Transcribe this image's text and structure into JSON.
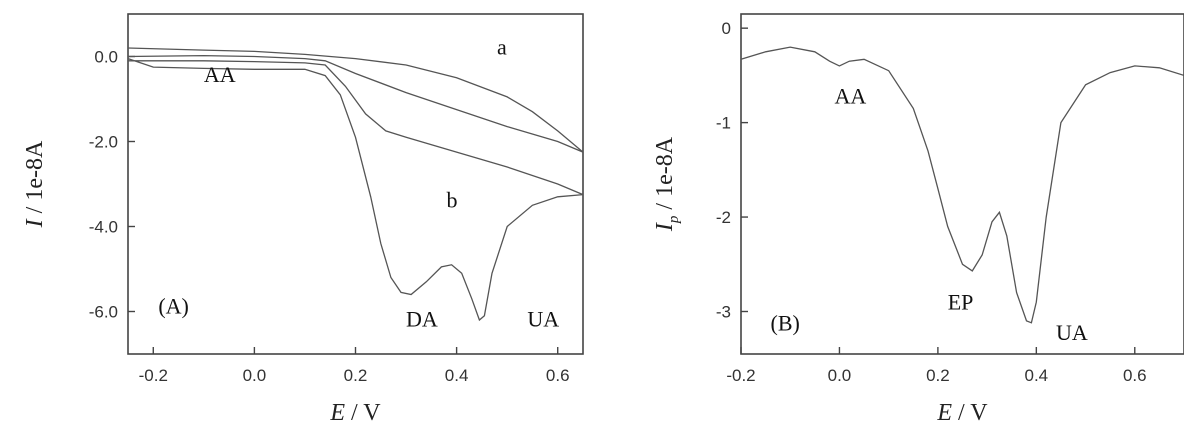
{
  "chart_data": [
    {
      "type": "line",
      "panel": "(A)",
      "xlabel": {
        "italic": "E",
        "rest": " / V"
      },
      "ylabel": {
        "italic": "I",
        "rest": " / 1e-8A"
      },
      "xlim": [
        -0.25,
        0.65
      ],
      "ylim": [
        -7.0,
        1.0
      ],
      "xticks": [
        -0.2,
        0.0,
        0.2,
        0.4,
        0.6
      ],
      "xtick_labels": [
        "-0.2",
        "0.0",
        "0.2",
        "0.4",
        "0.6"
      ],
      "yticks": [
        0.0,
        -2.0,
        -4.0,
        -6.0
      ],
      "ytick_labels": [
        "0.0",
        "-2.0",
        "-4.0",
        "-6.0"
      ],
      "series": [
        {
          "id": "a-upper",
          "x": [
            -0.25,
            -0.1,
            0.0,
            0.1,
            0.2,
            0.3,
            0.4,
            0.5,
            0.55,
            0.6,
            0.65
          ],
          "y": [
            0.2,
            0.15,
            0.12,
            0.05,
            -0.05,
            -0.2,
            -0.5,
            -0.95,
            -1.3,
            -1.75,
            -2.25
          ]
        },
        {
          "id": "a-lower",
          "x": [
            -0.25,
            -0.1,
            0.0,
            0.1,
            0.14,
            0.2,
            0.3,
            0.4,
            0.5,
            0.6,
            0.65
          ],
          "y": [
            0.0,
            0.02,
            0.0,
            -0.05,
            -0.1,
            -0.4,
            -0.85,
            -1.25,
            -1.65,
            -2.0,
            -2.25
          ]
        },
        {
          "id": "b-upper",
          "x": [
            -0.25,
            -0.1,
            0.0,
            0.1,
            0.14,
            0.18,
            0.22,
            0.26,
            0.3,
            0.4,
            0.5,
            0.6,
            0.65
          ],
          "y": [
            -0.1,
            -0.1,
            -0.12,
            -0.15,
            -0.2,
            -0.7,
            -1.35,
            -1.75,
            -1.9,
            -2.25,
            -2.6,
            -3.0,
            -3.25
          ]
        },
        {
          "id": "b-lower",
          "x": [
            -0.25,
            -0.2,
            -0.1,
            0.0,
            0.1,
            0.14,
            0.17,
            0.2,
            0.23,
            0.25,
            0.27,
            0.29,
            0.31,
            0.34,
            0.37,
            0.39,
            0.41,
            0.43,
            0.445,
            0.455,
            0.47,
            0.5,
            0.55,
            0.6,
            0.65
          ],
          "y": [
            -0.05,
            -0.25,
            -0.28,
            -0.3,
            -0.3,
            -0.45,
            -0.9,
            -1.9,
            -3.3,
            -4.4,
            -5.2,
            -5.55,
            -5.6,
            -5.3,
            -4.95,
            -4.9,
            -5.1,
            -5.7,
            -6.2,
            -6.1,
            -5.1,
            -4.0,
            -3.5,
            -3.3,
            -3.25
          ]
        }
      ],
      "annotations": [
        {
          "text": "a",
          "x": 0.48,
          "y": 0.05
        },
        {
          "text": "AA",
          "x": -0.1,
          "y": -0.6
        },
        {
          "text": "b",
          "x": 0.38,
          "y": -3.55
        },
        {
          "text": "(A)",
          "x": -0.19,
          "y": -6.05
        },
        {
          "text": "DA",
          "x": 0.3,
          "y": -6.35
        },
        {
          "text": "UA",
          "x": 0.54,
          "y": -6.35
        }
      ]
    },
    {
      "type": "line",
      "panel": "(B)",
      "xlabel": {
        "italic": "E",
        "rest": " / V"
      },
      "ylabel": {
        "italic": "I",
        "sub": "p",
        "rest": " / 1e-8A"
      },
      "xlim": [
        -0.2,
        0.7
      ],
      "ylim": [
        -3.45,
        0.15
      ],
      "xticks": [
        -0.2,
        0.0,
        0.2,
        0.4,
        0.6
      ],
      "xtick_labels": [
        "-0.2",
        "0.0",
        "0.2",
        "0.4",
        "0.6"
      ],
      "yticks": [
        0,
        -1,
        -2,
        -3
      ],
      "ytick_labels": [
        "0",
        "-1",
        "-2",
        "-3"
      ],
      "series": [
        {
          "id": "dpv",
          "x": [
            -0.2,
            -0.15,
            -0.1,
            -0.05,
            -0.02,
            0.0,
            0.02,
            0.05,
            0.1,
            0.15,
            0.18,
            0.2,
            0.22,
            0.25,
            0.27,
            0.29,
            0.31,
            0.325,
            0.34,
            0.36,
            0.38,
            0.39,
            0.4,
            0.42,
            0.45,
            0.5,
            0.55,
            0.6,
            0.65,
            0.7
          ],
          "y": [
            -0.33,
            -0.25,
            -0.2,
            -0.25,
            -0.35,
            -0.4,
            -0.35,
            -0.33,
            -0.45,
            -0.85,
            -1.3,
            -1.7,
            -2.1,
            -2.5,
            -2.57,
            -2.4,
            -2.05,
            -1.95,
            -2.2,
            -2.8,
            -3.1,
            -3.12,
            -2.9,
            -2.0,
            -1.0,
            -0.6,
            -0.47,
            -0.4,
            -0.42,
            -0.5
          ]
        }
      ],
      "annotations": [
        {
          "text": "AA",
          "x": -0.01,
          "y": -0.8
        },
        {
          "text": "EP",
          "x": 0.22,
          "y": -2.98
        },
        {
          "text": "(B)",
          "x": -0.14,
          "y": -3.2
        },
        {
          "text": "UA",
          "x": 0.44,
          "y": -3.3
        }
      ]
    }
  ]
}
